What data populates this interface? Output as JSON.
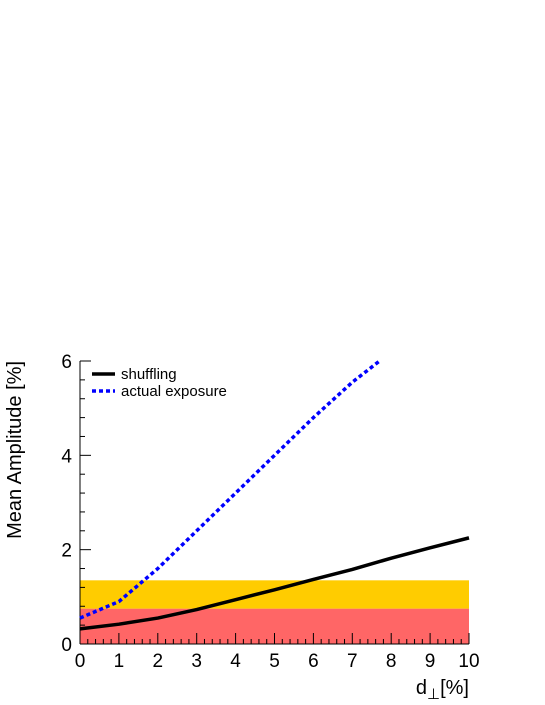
{
  "chart_data": {
    "type": "line",
    "xlabel_main": "d",
    "xlabel_sub": "⊥",
    "xlabel_unit": "[%]",
    "ylabel": "Mean Amplitude [%]",
    "xlim": [
      0,
      10
    ],
    "ylim": [
      0,
      6
    ],
    "x_ticks": [
      0,
      1,
      2,
      3,
      4,
      5,
      6,
      7,
      8,
      9,
      10
    ],
    "y_ticks": [
      0,
      2,
      4,
      6
    ],
    "grid": false,
    "legend_position": "top-left",
    "bands": [
      {
        "ymin": 0,
        "ymax": 0.75,
        "color": "#ff6666"
      },
      {
        "ymin": 0.75,
        "ymax": 1.35,
        "color": "#ffcc00"
      }
    ],
    "series": [
      {
        "name": "shuffling",
        "color": "#000000",
        "style": "solid",
        "x": [
          0,
          1,
          2,
          3,
          4,
          5,
          6,
          7,
          8,
          9,
          10
        ],
        "y": [
          0.32,
          0.42,
          0.55,
          0.73,
          0.94,
          1.15,
          1.37,
          1.58,
          1.82,
          2.04,
          2.25
        ]
      },
      {
        "name": "actual exposure",
        "color": "#0000ff",
        "style": "dotted",
        "x": [
          0,
          1,
          2,
          3,
          4,
          5,
          6,
          7,
          7.7
        ],
        "y": [
          0.55,
          0.9,
          1.6,
          2.4,
          3.2,
          4.0,
          4.8,
          5.55,
          6.0
        ]
      }
    ]
  }
}
